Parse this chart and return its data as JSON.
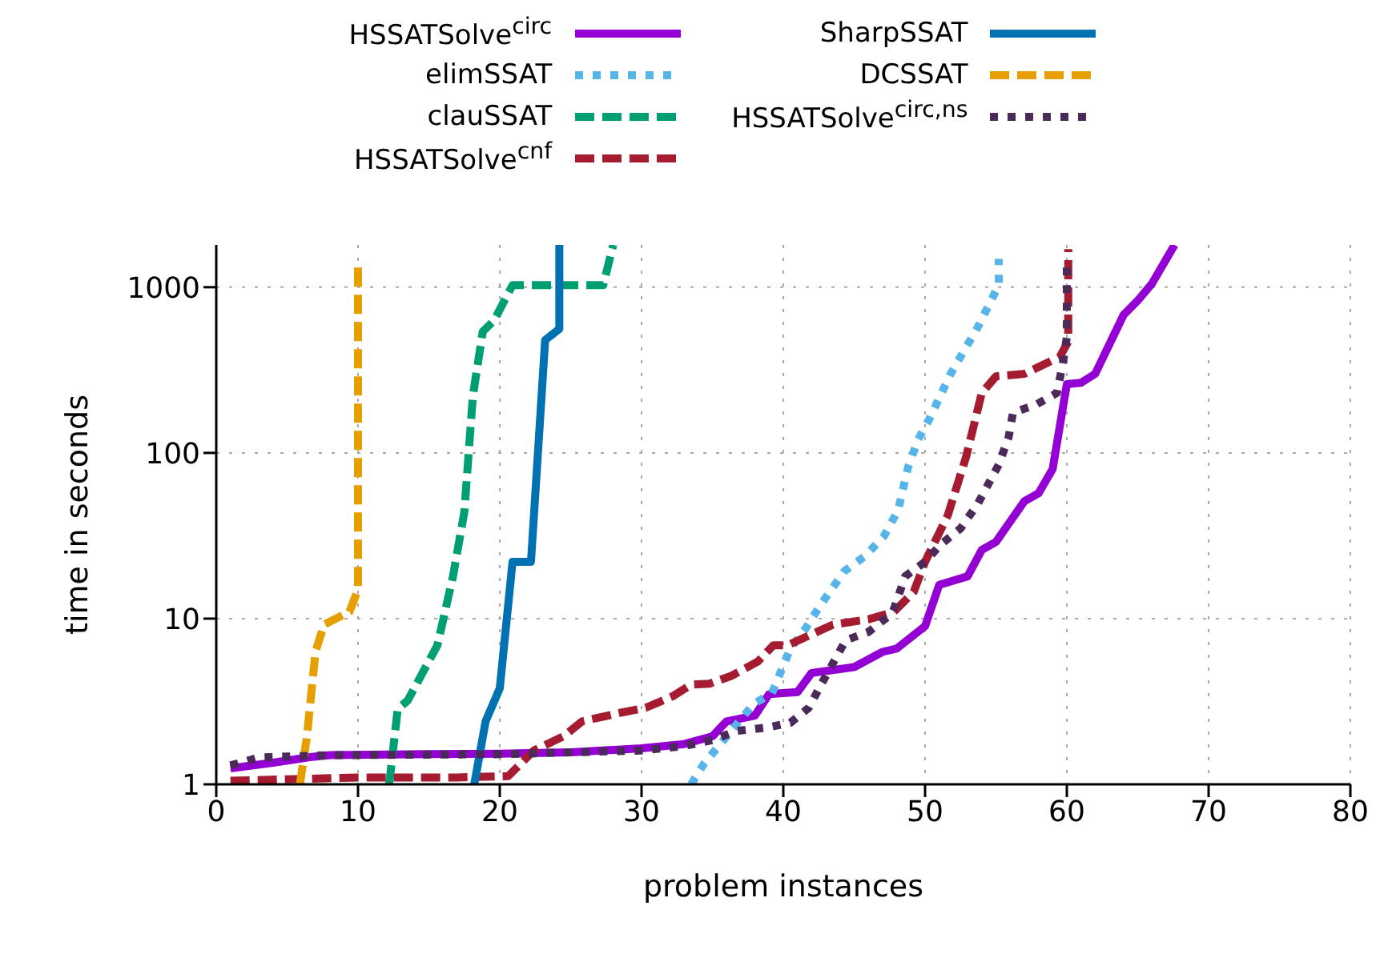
{
  "chart_data": {
    "type": "line",
    "xlabel": "problem instances",
    "ylabel": "time in seconds",
    "xlim": [
      0,
      80
    ],
    "xticks": [
      0,
      10,
      20,
      30,
      40,
      50,
      60,
      70,
      80
    ],
    "ylim": [
      1,
      1800
    ],
    "yticks": [
      1,
      10,
      100,
      1000
    ],
    "log": "y",
    "grid": true,
    "legend": "top",
    "marker": "none",
    "series": [
      {
        "name": "HSSATSolve$^{circ}$",
        "color": "#9400d3",
        "line_style": "solid",
        "x": [
          1,
          4,
          6.6,
          8,
          15,
          20,
          25,
          30,
          33,
          35,
          36,
          38,
          39,
          41,
          42,
          45,
          47,
          48,
          50,
          51,
          53,
          54,
          55,
          57,
          58,
          59,
          60,
          61,
          62,
          64,
          65,
          66,
          67.6
        ],
        "values": [
          1.25,
          1.35,
          1.46,
          1.5,
          1.52,
          1.53,
          1.56,
          1.65,
          1.75,
          1.95,
          2.4,
          2.6,
          3.5,
          3.6,
          4.7,
          5.1,
          6.3,
          6.6,
          9,
          16,
          18,
          26,
          29,
          51,
          57,
          80,
          260,
          265,
          300,
          680,
          830,
          1050,
          1800
        ]
      },
      {
        "name": "elimSSAT",
        "color": "#56b4e9",
        "line_style": "dotted",
        "x": [
          33.5,
          34.4,
          36.7,
          37.9,
          39.2,
          40.5,
          41.6,
          42.6,
          44.3,
          45.8,
          47.1,
          48.1,
          48.8,
          49.5,
          50.3,
          51.8,
          53.7,
          55.2,
          55.2
        ],
        "values": [
          1,
          1.33,
          2.3,
          3.05,
          3.55,
          6.6,
          8.8,
          12,
          19.3,
          24,
          31.5,
          45,
          82,
          120,
          160,
          300,
          570,
          1030,
          1480
        ]
      },
      {
        "name": "clauSSAT",
        "color": "#009e73",
        "line_style": "dashed",
        "x": [
          12.2,
          12.8,
          13.5,
          15.6,
          16.7,
          17.5,
          18.1,
          18.8,
          19.6,
          20.9,
          27.3,
          28
        ],
        "values": [
          1,
          2.85,
          3.2,
          6.9,
          18,
          44,
          220,
          540,
          630,
          1030,
          1030,
          1800
        ]
      },
      {
        "name": "HSSATSolve$^{cnf}$",
        "color": "#a51c30",
        "line_style": "dashed",
        "x": [
          1,
          10,
          17,
          20.6,
          22.4,
          24.5,
          25.8,
          28.5,
          30.3,
          32.2,
          33.5,
          34.8,
          36.3,
          38.2,
          39.3,
          40.3,
          41.8,
          43.5,
          46,
          47.8,
          49.2,
          50,
          51.6,
          52.9,
          54,
          55,
          57,
          59.5,
          60.1,
          60.1
        ],
        "values": [
          1.05,
          1.1,
          1.1,
          1.12,
          1.6,
          1.95,
          2.4,
          2.7,
          2.9,
          3.4,
          4,
          4.05,
          4.5,
          5.5,
          6.9,
          6.9,
          7.9,
          9.2,
          9.9,
          11,
          14.5,
          22,
          42,
          95,
          230,
          290,
          300,
          380,
          470,
          1700
        ]
      },
      {
        "name": "SharpSSAT",
        "color": "#0072b2",
        "line_style": "solid",
        "x": [
          18.2,
          19,
          20,
          20.9,
          22.2,
          23.2,
          24.2,
          24.2
        ],
        "values": [
          1,
          2.4,
          3.8,
          22,
          22,
          480,
          560,
          1800
        ]
      },
      {
        "name": "DCSSAT",
        "color": "#e69f00",
        "line_style": "dashed",
        "x": [
          5.9,
          6.4,
          7,
          7.6,
          9.4,
          10,
          10
        ],
        "values": [
          1,
          1.95,
          6.3,
          9.2,
          11,
          15,
          1400
        ]
      },
      {
        "name": "HSSATSolve$^{circ,ns}$",
        "color": "#4b2a5a",
        "line_style": "dotted",
        "x": [
          1,
          3,
          5,
          8,
          20,
          30,
          33,
          35,
          36.7,
          38.8,
          40.5,
          41.8,
          42.7,
          44.4,
          46,
          47.7,
          48.6,
          50,
          51.1,
          52.5,
          53.7,
          55.2,
          55.9,
          56.2,
          57.8,
          59.3,
          59.7,
          60,
          60
        ],
        "values": [
          1.3,
          1.45,
          1.47,
          1.5,
          1.52,
          1.6,
          1.7,
          1.85,
          2.1,
          2.2,
          2.35,
          2.9,
          4.05,
          7.4,
          8.3,
          10.8,
          18,
          22,
          28,
          35,
          49,
          85,
          125,
          175,
          195,
          230,
          340,
          500,
          1400
        ]
      }
    ]
  }
}
